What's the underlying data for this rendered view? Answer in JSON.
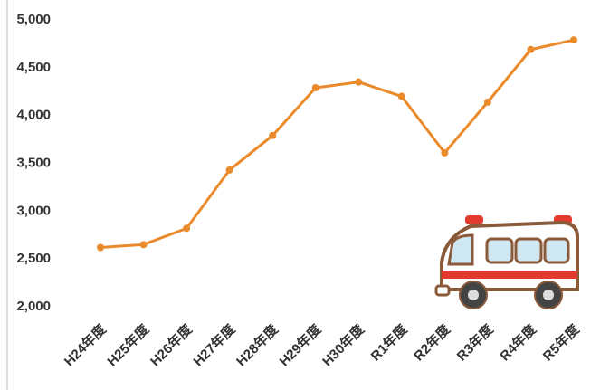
{
  "chart_data": {
    "type": "line",
    "categories": [
      "H24年度",
      "H25年度",
      "H26年度",
      "H27年度",
      "H28年度",
      "H29年度",
      "H30年度",
      "R1年度",
      "R2年度",
      "R3年度",
      "R4年度",
      "R5年度"
    ],
    "series": [
      {
        "color": "#ea8a2a",
        "values": [
          2620,
          2650,
          2820,
          3430,
          3790,
          4290,
          4350,
          4200,
          3610,
          4140,
          4690,
          4790
        ]
      }
    ],
    "ylim": [
      2000,
      5000
    ],
    "yticks": [
      {
        "value": 2000,
        "label": "2,000"
      },
      {
        "value": 2500,
        "label": "2,500"
      },
      {
        "value": 3000,
        "label": "3,000"
      },
      {
        "value": 3500,
        "label": "3,500"
      },
      {
        "value": 4000,
        "label": "4,000"
      },
      {
        "value": 4500,
        "label": "4,500"
      },
      {
        "value": 5000,
        "label": "5,000"
      }
    ]
  }
}
